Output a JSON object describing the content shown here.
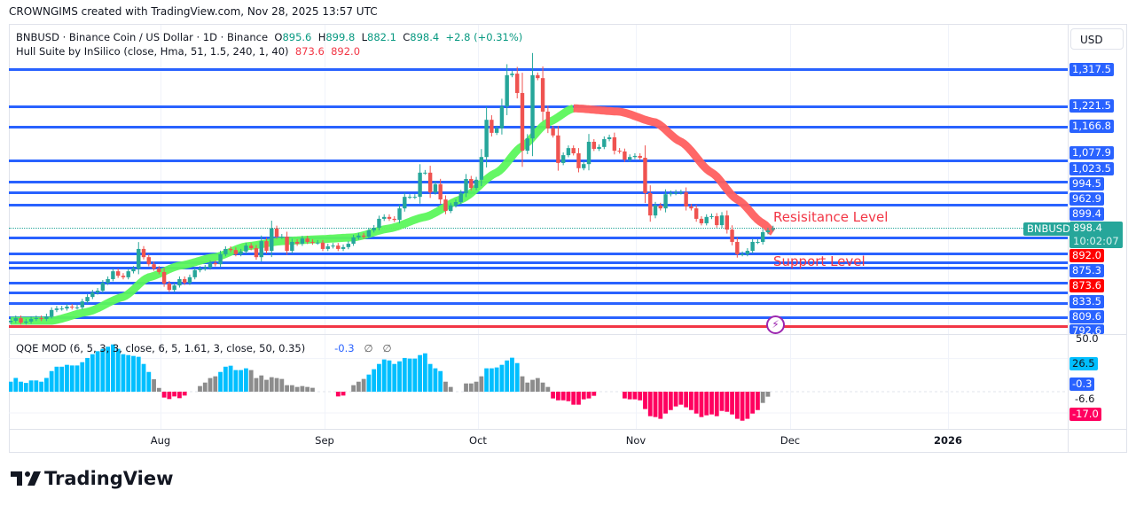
{
  "credit": "CROWNGIMS created with TradingView.com, Nov 28, 2025 13:57 UTC",
  "legend": {
    "symbol_line": "BNBUSD · Binance Coin / US Dollar · 1D · Binance",
    "o_label": "O",
    "o": "895.6",
    "h_label": "H",
    "h": "899.8",
    "l_label": "L",
    "l": "882.1",
    "c_label": "C",
    "c": "898.4",
    "change": "+2.8 (+0.31%)",
    "hull_name": "Hull Suite by InSilico (close, Hma, 51, 1.5, 240, 1, 40)",
    "hull_v1": "873.6",
    "hull_v2": "892.0",
    "qqe_name": "QQE MOD (6, 5, 3, 3, close, 6, 5, 1.61, 3, close, 50, 0.35)",
    "qqe_value": "-0.3",
    "qqe_na1": "∅",
    "qqe_na2": "∅"
  },
  "currency_button": "USD",
  "annotations": {
    "resistance": "Resisitance Level",
    "support": "Support Level"
  },
  "symbol_tag": "BNBUSD",
  "current_price": "898.4",
  "countdown": "10:02:07",
  "price_labels": [
    "1,317.5",
    "1,221.5",
    "1,166.8",
    "1,077.9",
    "1,023.5",
    "994.5",
    "962.9",
    "899.4",
    "892.0",
    "875.3",
    "873.6",
    "833.5",
    "809.6",
    "792.6"
  ],
  "qqe_labels": {
    "top": "50.0",
    "hist": "26.5",
    "value": "-0.3",
    "mid": "-6.6",
    "low": "-17.0"
  },
  "time_ticks": [
    "Aug",
    "Sep",
    "Oct",
    "Nov",
    "Dec",
    "2026"
  ],
  "logo_text": "TradingView",
  "colors": {
    "up": "#26a69a",
    "down": "#ef5350",
    "hull_up": "#5cf75c",
    "hull_down": "#ff5f5f",
    "level": "#2962ff",
    "level_red": "#f23645",
    "qqe_cyan": "#00bfff",
    "qqe_grey": "#8c8c8c",
    "qqe_red": "#ff005f"
  },
  "chart_data": [
    {
      "type": "candlestick",
      "symbol": "BNBUSD",
      "interval": "1D",
      "x_range": [
        "2025-07-01",
        "2025-11-28"
      ],
      "x_ticks": [
        "Aug",
        "Sep",
        "Oct",
        "Nov",
        "Dec",
        "2026"
      ],
      "closes": [
        650,
        657,
        645,
        648,
        655,
        657,
        655,
        662,
        679,
        683,
        683,
        688,
        686,
        686,
        702,
        714,
        726,
        731,
        752,
        762,
        783,
        771,
        767,
        783,
        790,
        843,
        821,
        802,
        790,
        781,
        750,
        733,
        745,
        762,
        752,
        767,
        786,
        790,
        793,
        805,
        802,
        829,
        843,
        840,
        829,
        836,
        852,
        845,
        821,
        864,
        838,
        898,
        876,
        876,
        838,
        862,
        857,
        871,
        862,
        860,
        860,
        843,
        850,
        852,
        843,
        848,
        857,
        874,
        879,
        876,
        893,
        900,
        924,
        929,
        924,
        921,
        952,
        983,
        983,
        983,
        1048,
        1048,
        995,
        1017,
        976,
        945,
        960,
        969,
        993,
        1031,
        1007,
        1029,
        1090,
        1190,
        1155,
        1167,
        1226,
        1310,
        1314,
        1262,
        1107,
        1140,
        1310,
        1302,
        1212,
        1167,
        1148,
        1074,
        1095,
        1114,
        1100,
        1060,
        1071,
        1131,
        1112,
        1117,
        1138,
        1143,
        1107,
        1105,
        1083,
        1090,
        1093,
        1088,
        993,
        933,
        960,
        952,
        990,
        993,
        995,
        995,
        957,
        952,
        924,
        912,
        929,
        931,
        907,
        933,
        895,
        862,
        829,
        829,
        838,
        862,
        862,
        888,
        893,
        898.4
      ],
      "last_ohlc": {
        "open": 895.6,
        "high": 899.8,
        "low": 882.1,
        "close": 898.4
      },
      "hull_suite": {
        "knots_day_index": [
          0,
          8,
          15,
          22,
          27,
          33,
          40,
          46,
          53,
          60,
          67,
          74,
          81,
          88,
          95,
          100,
          105,
          110,
          119,
          126,
          131,
          137,
          142,
          147,
          149
        ],
        "values": [
          650,
          650,
          674,
          714,
          767,
          798,
          821,
          850,
          864,
          869,
          874,
          898,
          929,
          976,
          1048,
          1119,
          1183,
          1221,
          1212,
          1183,
          1131,
          1048,
          976,
          912,
          888
        ],
        "peak_day_index": 110,
        "last_values": [
          873.6,
          892.0
        ]
      },
      "levels": [
        1317.5,
        1221.5,
        1166.8,
        1077.9,
        1023.5,
        994.5,
        962.9,
        899.4,
        892.0,
        875.3,
        873.6,
        833.5,
        809.6,
        792.6
      ]
    },
    {
      "type": "bar",
      "name": "QQE MOD",
      "ylim": [
        -25,
        50
      ],
      "values": [
        8,
        11,
        8,
        7,
        9,
        9,
        8,
        11,
        16.5,
        20,
        20,
        21.5,
        21,
        21,
        23.6,
        27,
        30,
        32.4,
        34.3,
        36,
        37.8,
        34.3,
        30,
        29.3,
        28.6,
        27.9,
        22.2,
        15.8,
        10,
        3,
        -4.7,
        -5.9,
        -3.8,
        -5.2,
        -3.1,
        0,
        0,
        4.5,
        7.3,
        10.9,
        12.3,
        15.8,
        20,
        20.8,
        17.3,
        17.3,
        18.7,
        17.3,
        10.9,
        13,
        9.5,
        11.6,
        10.9,
        10.2,
        5.2,
        5.2,
        3.8,
        4.5,
        3.8,
        3.1,
        0,
        0,
        0,
        0,
        -3.8,
        -3.1,
        0,
        5.2,
        8,
        10.2,
        13.7,
        18,
        22.2,
        25.8,
        25,
        22.2,
        24.3,
        27,
        26.5,
        26.5,
        29.3,
        30.7,
        22.2,
        18.7,
        16.5,
        8,
        3.8,
        0,
        0,
        6.6,
        6.6,
        8,
        12.3,
        18.7,
        18.7,
        19.4,
        21.5,
        25,
        27.2,
        22.9,
        12.3,
        7.3,
        9.5,
        10.9,
        7.3,
        3.8,
        -5.4,
        -6.9,
        -6.9,
        -7.6,
        -10.4,
        -10.4,
        -6.1,
        -5.4,
        -3.3,
        0,
        0,
        0,
        0,
        0,
        -5.4,
        -6.1,
        -6.1,
        -6.9,
        -13.9,
        -19.6,
        -20.3,
        -21.7,
        -17.5,
        -14.7,
        -11.8,
        -10.4,
        -12.5,
        -14.7,
        -17.5,
        -20.3,
        -18.9,
        -18.2,
        -19.6,
        -15.4,
        -16.1,
        -18.2,
        -21.7,
        -23.2,
        -21.7,
        -17.5,
        -14.7,
        -9,
        -4
      ],
      "color_runs": [
        [
          "c",
          28
        ],
        [
          "g",
          2
        ],
        [
          "r",
          5
        ],
        [
          "g",
          6
        ],
        [
          "c",
          6
        ],
        [
          "g",
          17
        ],
        [
          "r",
          2
        ],
        [
          "g",
          4
        ],
        [
          "c",
          15
        ],
        [
          "g",
          8
        ],
        [
          "c",
          7
        ],
        [
          "g",
          6
        ],
        [
          "r",
          9
        ],
        [
          "g",
          5
        ],
        [
          "r",
          27
        ],
        [
          "g",
          2
        ]
      ]
    }
  ]
}
